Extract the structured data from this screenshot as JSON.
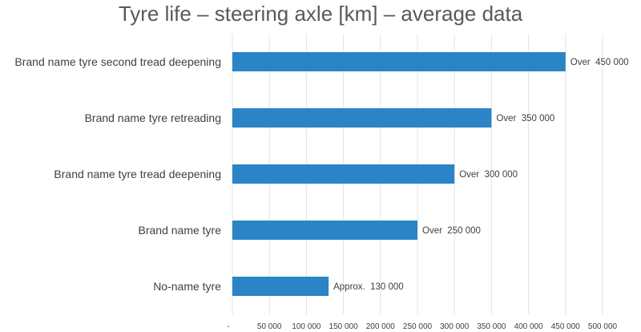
{
  "chart_data": {
    "type": "bar",
    "orientation": "horizontal",
    "title": "Tyre life – steering axle [km] – average data",
    "categories": [
      "Brand name tyre second tread deepening",
      "Brand name tyre retreading",
      "Brand name tyre tread deepening",
      "Brand name tyre",
      "No-name tyre"
    ],
    "values": [
      450000,
      350000,
      300000,
      250000,
      130000
    ],
    "data_labels": [
      "Over  450 000",
      "Over  350 000",
      "Over  300 000",
      "Over  250 000",
      "Approx.  130 000"
    ],
    "xlim": [
      0,
      500000
    ],
    "x_ticks": [
      0,
      50000,
      100000,
      150000,
      200000,
      250000,
      300000,
      350000,
      400000,
      450000,
      500000
    ],
    "x_tick_labels": [
      "-",
      "50 000",
      "100 000",
      "150 000",
      "200 000",
      "250 000",
      "300 000",
      "350 000",
      "400 000",
      "450 000",
      "500 000"
    ],
    "bar_color": "#2a84c6",
    "grid": true,
    "legend": false
  }
}
